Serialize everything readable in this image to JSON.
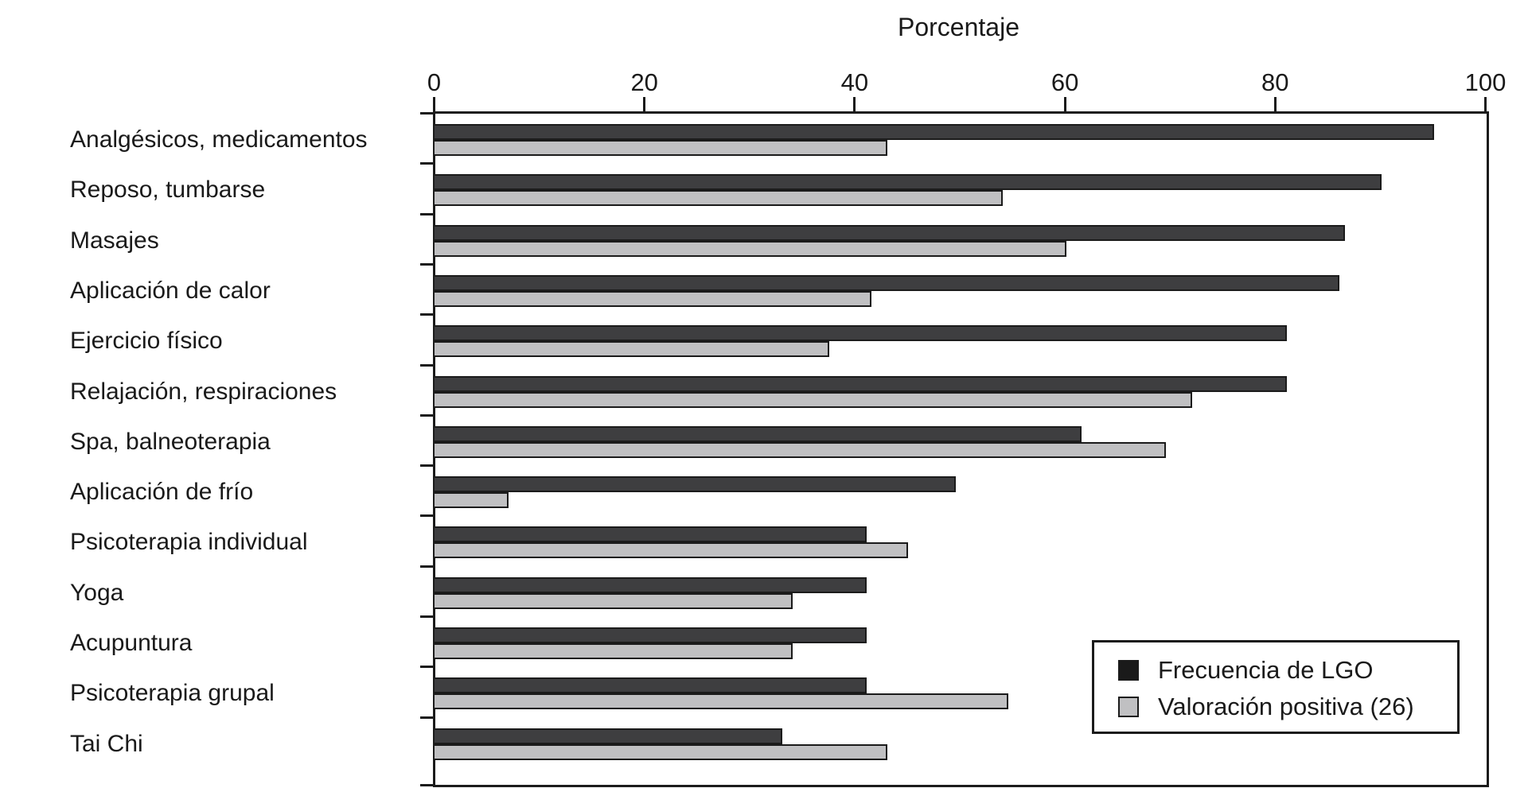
{
  "chart_data": {
    "type": "bar",
    "orientation": "horizontal",
    "title": "Porcentaje",
    "categories": [
      "Analgésicos, medicamentos",
      "Reposo, tumbarse",
      "Masajes",
      "Aplicación de calor",
      "Ejercicio físico",
      "Relajación, respiraciones",
      "Spa, balneoterapia",
      "Aplicación de frío",
      "Psicoterapia individual",
      "Yoga",
      "Acupuntura",
      "Psicoterapia grupal",
      "Tai Chi"
    ],
    "series": [
      {
        "name": "Frecuencia de LGO",
        "color": "#3e3e40",
        "values": [
          95,
          90,
          86.5,
          86,
          81,
          81,
          61.5,
          49.5,
          41,
          41,
          41,
          41,
          33
        ]
      },
      {
        "name": "Valoración positiva (26)",
        "color": "#c0c0c2",
        "values": [
          43,
          54,
          60,
          41.5,
          37.5,
          72,
          69.5,
          7,
          45,
          34,
          34,
          54.5,
          43
        ]
      }
    ],
    "xlabel": "Porcentaje",
    "ylabel": "",
    "xlim": [
      0,
      100
    ],
    "x_ticks": [
      0,
      20,
      40,
      60,
      80,
      100
    ],
    "grid": false,
    "legend_position": "bottom-right"
  },
  "legend": {
    "items": [
      {
        "label": "Frecuencia de LGO",
        "swatch_color": "#1a1a1a"
      },
      {
        "label": "Valoración positiva (26)",
        "swatch_color": "#c0c0c2"
      }
    ]
  },
  "colors": {
    "axis": "#1b1b1b",
    "text": "#1a1a1a",
    "background": "#ffffff",
    "bar_dark": "#3e3e40",
    "bar_light": "#c0c0c2"
  }
}
